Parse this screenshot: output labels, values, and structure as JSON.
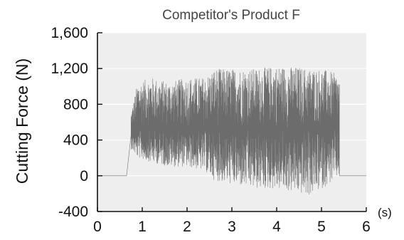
{
  "chart_data": {
    "type": "line",
    "title": "Competitor's Product F",
    "xlabel": "",
    "x_unit": "(s)",
    "ylabel": "Cutting Force (N)",
    "xlim": [
      0,
      6
    ],
    "ylim": [
      -400,
      1600
    ],
    "x_ticks": [
      0,
      1,
      2,
      3,
      4,
      5,
      6
    ],
    "x_tick_labels": [
      "0",
      "1",
      "2",
      "3",
      "4",
      "5",
      "6"
    ],
    "y_ticks": [
      -400,
      0,
      400,
      800,
      1200,
      1600
    ],
    "y_tick_labels": [
      "-400",
      "0",
      "400",
      "800",
      "1,200",
      "1,600"
    ],
    "grid": true,
    "series": [
      {
        "color": "#555555",
        "segments": [
          {
            "t_start": 0.0,
            "t_end": 0.65,
            "level": 0
          },
          {
            "t_start": 0.65,
            "t_end": 0.75,
            "level_start": 0,
            "level_end": 450
          },
          {
            "t_start": 0.75,
            "t_end": 5.4,
            "mean": 520,
            "max": 1230,
            "min": -230,
            "note_shape": "dense oscillation"
          },
          {
            "t_start": 5.4,
            "t_end": 6.0,
            "level": 0
          }
        ],
        "envelope": [
          {
            "t": 0.75,
            "min": 300,
            "max": 700
          },
          {
            "t": 0.9,
            "min": 200,
            "max": 1050
          },
          {
            "t": 1.2,
            "min": 150,
            "max": 1100
          },
          {
            "t": 1.6,
            "min": 100,
            "max": 1050
          },
          {
            "t": 2.0,
            "min": 100,
            "max": 1100
          },
          {
            "t": 2.4,
            "min": 50,
            "max": 1100
          },
          {
            "t": 2.6,
            "min": -50,
            "max": 1200
          },
          {
            "t": 3.0,
            "min": -100,
            "max": 1200
          },
          {
            "t": 3.5,
            "min": -150,
            "max": 1200
          },
          {
            "t": 4.0,
            "min": -150,
            "max": 1230
          },
          {
            "t": 4.5,
            "min": -200,
            "max": 1220
          },
          {
            "t": 4.7,
            "min": -230,
            "max": 1200
          },
          {
            "t": 5.0,
            "min": -150,
            "max": 1200
          },
          {
            "t": 5.3,
            "min": -50,
            "max": 1150
          },
          {
            "t": 5.4,
            "min": 0,
            "max": 1100
          }
        ]
      }
    ]
  },
  "colors": {
    "plot_background": "#eeeeee",
    "gridline": "#ffffff",
    "axis": "#111111",
    "signal": "#555555"
  }
}
